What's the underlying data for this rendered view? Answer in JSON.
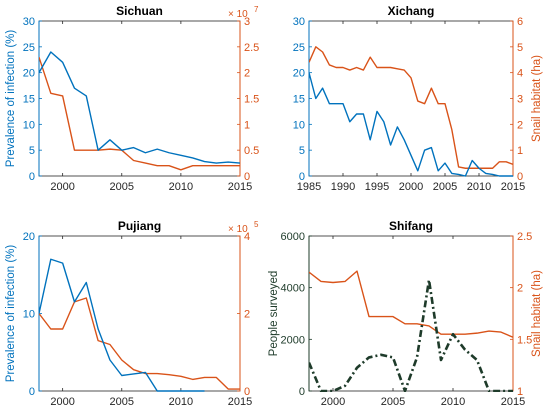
{
  "colors": {
    "blue": "#0072BD",
    "orange": "#D95319",
    "green": "#1E3B2A",
    "axis": "#262626"
  },
  "chart_data": [
    {
      "type": "line",
      "title": "Sichuan",
      "xlim": [
        1998,
        2015
      ],
      "xticks": [
        2000,
        2005,
        2010,
        2015
      ],
      "left_axis": {
        "label": "Prevalence of infection (%)",
        "lim": [
          0,
          30
        ],
        "ticks": [
          0,
          5,
          10,
          15,
          20,
          25,
          30
        ],
        "color": "#0072BD"
      },
      "right_axis": {
        "label": "",
        "lim": [
          0,
          3
        ],
        "ticks": [
          0,
          0.5,
          1,
          1.5,
          2,
          2.5,
          3
        ],
        "exponent": "× 10^7",
        "color": "#D95319"
      },
      "series": [
        {
          "axis": "left",
          "style": "solid",
          "color": "#0072BD",
          "x": [
            1998,
            1999,
            2000,
            2001,
            2002,
            2003,
            2004,
            2005,
            2006,
            2007,
            2008,
            2009,
            2010,
            2011,
            2012,
            2013,
            2014,
            2015
          ],
          "y": [
            20,
            24,
            22,
            17,
            15.5,
            5,
            7,
            5,
            5.5,
            4.5,
            5.2,
            4.5,
            4,
            3.5,
            2.8,
            2.5,
            2.7,
            2.5
          ]
        },
        {
          "axis": "right",
          "style": "solid",
          "color": "#D95319",
          "x": [
            1998,
            1999,
            2000,
            2001,
            2002,
            2003,
            2004,
            2005,
            2006,
            2007,
            2008,
            2009,
            2010,
            2011,
            2012,
            2013,
            2014,
            2015
          ],
          "y": [
            2.3,
            1.6,
            1.55,
            0.5,
            0.5,
            0.5,
            0.52,
            0.5,
            0.3,
            0.25,
            0.2,
            0.2,
            0.12,
            0.2,
            0.2,
            0.2,
            0.2,
            0.2
          ]
        }
      ]
    },
    {
      "type": "line",
      "title": "Xichang",
      "xlim": [
        1985,
        2015
      ],
      "xticks": [
        1985,
        1990,
        1995,
        2000,
        2005,
        2010,
        2015
      ],
      "left_axis": {
        "label": "",
        "lim": [
          0,
          30
        ],
        "ticks": [
          0,
          5,
          10,
          15,
          20,
          25,
          30
        ],
        "color": "#0072BD"
      },
      "right_axis": {
        "label": "Snail habitat (ha)",
        "lim": [
          0,
          6
        ],
        "ticks": [
          0,
          1,
          2,
          3,
          4,
          5,
          6
        ],
        "color": "#D95319"
      },
      "series": [
        {
          "axis": "left",
          "style": "solid",
          "color": "#0072BD",
          "x": [
            1985,
            1986,
            1987,
            1988,
            1989,
            1990,
            1991,
            1992,
            1993,
            1994,
            1995,
            1996,
            1997,
            1998,
            1999,
            2000,
            2001,
            2002,
            2003,
            2004,
            2005,
            2006,
            2007,
            2008,
            2009,
            2010,
            2011,
            2012,
            2013,
            2014,
            2015
          ],
          "y": [
            20,
            15,
            17,
            14,
            14,
            14,
            10.5,
            12,
            12,
            7,
            12.5,
            10.5,
            6,
            9.5,
            7,
            4,
            1,
            5,
            5.5,
            1,
            2.5,
            0.5,
            0.3,
            0,
            3,
            1.5,
            0.5,
            0.3,
            0,
            0,
            0
          ]
        },
        {
          "axis": "right",
          "style": "solid",
          "color": "#D95319",
          "x": [
            1985,
            1986,
            1987,
            1988,
            1989,
            1990,
            1991,
            1992,
            1993,
            1994,
            1995,
            1996,
            1997,
            1998,
            1999,
            2000,
            2001,
            2002,
            2003,
            2004,
            2005,
            2006,
            2007,
            2008,
            2009,
            2010,
            2011,
            2012,
            2013,
            2014,
            2015
          ],
          "y": [
            4.4,
            5,
            4.8,
            4.3,
            4.2,
            4.2,
            4.1,
            4.2,
            4.1,
            4.6,
            4.2,
            4.2,
            4.2,
            4.15,
            4.1,
            3.8,
            2.9,
            2.8,
            3.4,
            2.8,
            2.8,
            1.8,
            0.35,
            0.3,
            0.3,
            0.3,
            0.3,
            0.3,
            0.55,
            0.55,
            0.45
          ]
        }
      ]
    },
    {
      "type": "line",
      "title": "Pujiang",
      "xlim": [
        1998,
        2015
      ],
      "xticks": [
        2000,
        2005,
        2010,
        2015
      ],
      "left_axis": {
        "label": "Prevalence of infection (%)",
        "lim": [
          0,
          20
        ],
        "ticks": [
          0,
          10,
          20
        ],
        "color": "#0072BD"
      },
      "right_axis": {
        "label": "",
        "lim": [
          0,
          4
        ],
        "ticks": [
          0,
          2,
          4
        ],
        "exponent": "× 10^5",
        "color": "#D95319"
      },
      "series": [
        {
          "axis": "left",
          "style": "solid",
          "color": "#0072BD",
          "x": [
            1998,
            1999,
            2000,
            2001,
            2002,
            2003,
            2004,
            2005,
            2006,
            2007,
            2008,
            2009,
            2010,
            2011,
            2012
          ],
          "y": [
            10,
            17,
            16.5,
            11.5,
            14,
            8,
            4,
            2,
            2.2,
            2.4,
            0,
            0,
            0,
            0,
            0
          ]
        },
        {
          "axis": "right",
          "style": "solid",
          "color": "#D95319",
          "x": [
            1998,
            1999,
            2000,
            2001,
            2002,
            2003,
            2004,
            2005,
            2006,
            2007,
            2008,
            2009,
            2010,
            2011,
            2012,
            2013,
            2014,
            2015
          ],
          "y": [
            2,
            1.6,
            1.6,
            2.3,
            2.4,
            1.3,
            1.2,
            0.8,
            0.55,
            0.45,
            0.45,
            0.42,
            0.38,
            0.3,
            0.35,
            0.35,
            0.05,
            0.05
          ]
        }
      ]
    },
    {
      "type": "line",
      "title": "Shifang",
      "xlim": [
        1998,
        2015
      ],
      "xticks": [
        2000,
        2005,
        2010,
        2015
      ],
      "left_axis": {
        "label": "People surveyed",
        "lim": [
          0,
          6000
        ],
        "ticks": [
          0,
          2000,
          4000,
          6000
        ],
        "color": "#1E3B2A"
      },
      "right_axis": {
        "label": "Snail habitat (ha)",
        "lim": [
          1,
          2.5
        ],
        "ticks": [
          1,
          1.5,
          2,
          2.5
        ],
        "color": "#D95319"
      },
      "series": [
        {
          "axis": "left",
          "style": "dashdot",
          "color": "#1E3B2A",
          "x": [
            1998,
            1999,
            2000,
            2001,
            2002,
            2003,
            2004,
            2005,
            2006,
            2007,
            2008,
            2009,
            2010,
            2011,
            2012,
            2013,
            2014,
            2015
          ],
          "y": [
            1100,
            0,
            0,
            200,
            900,
            1300,
            1400,
            1300,
            0,
            1300,
            4300,
            1200,
            2200,
            1600,
            1200,
            0,
            0,
            0
          ]
        },
        {
          "axis": "right",
          "style": "solid",
          "color": "#D95319",
          "x": [
            1998,
            1999,
            2000,
            2001,
            2002,
            2003,
            2004,
            2005,
            2006,
            2007,
            2008,
            2009,
            2010,
            2011,
            2012,
            2013,
            2014,
            2015
          ],
          "y": [
            2.15,
            2.06,
            2.05,
            2.06,
            2.16,
            1.72,
            1.72,
            1.72,
            1.65,
            1.65,
            1.63,
            1.55,
            1.55,
            1.55,
            1.56,
            1.58,
            1.57,
            1.52
          ]
        }
      ]
    }
  ]
}
